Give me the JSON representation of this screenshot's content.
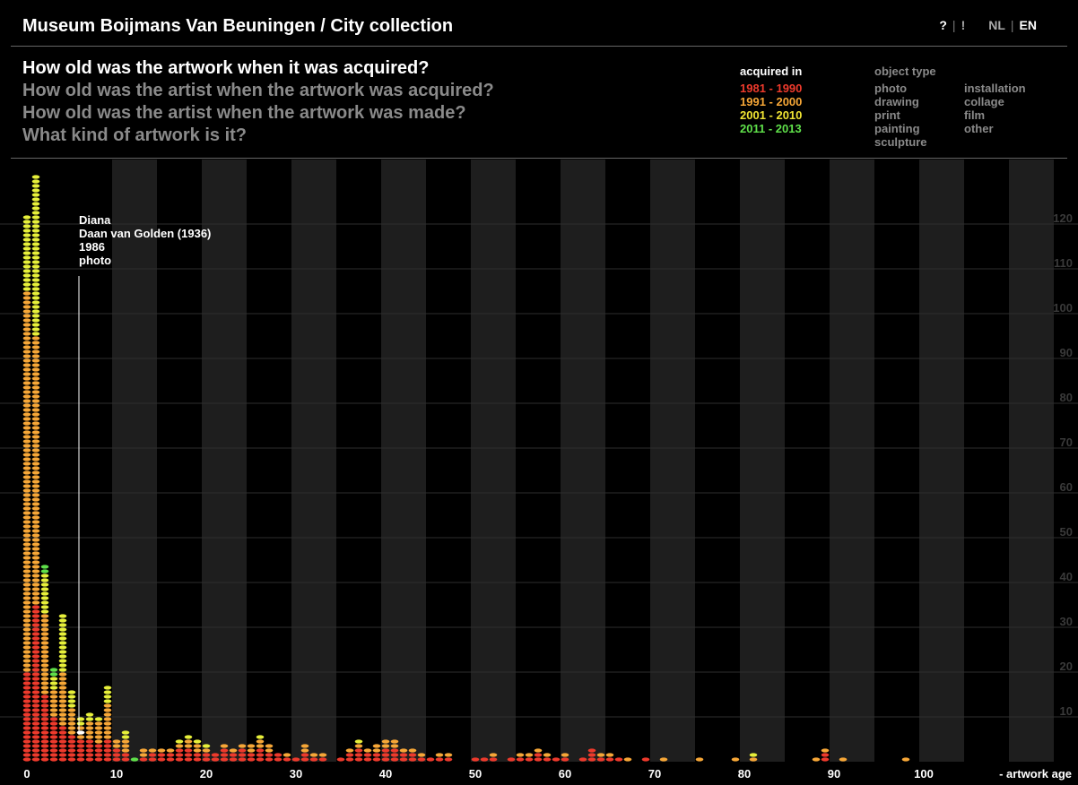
{
  "header": {
    "title": "Museum Boijmans Van Beuningen / City collection",
    "nav": {
      "help": "?",
      "sep1": "|",
      "info": "!",
      "lang_nl": "NL",
      "sep2": "|",
      "lang_en": "EN"
    }
  },
  "questions": [
    {
      "label": "How old was the artwork when it was acquired?",
      "active": true
    },
    {
      "label": "How old was the artist when the artwork was acquired?",
      "active": false
    },
    {
      "label": "How old was the artist when the artwork was made?",
      "active": false
    },
    {
      "label": "What kind of artwork is it?",
      "active": false
    }
  ],
  "legend": {
    "acquired_title": "acquired in",
    "periods": [
      {
        "label": "1981 - 1990",
        "color": "#ee3a2c"
      },
      {
        "label": "1991 - 2000",
        "color": "#f7a737"
      },
      {
        "label": "2001 - 2010",
        "color": "#f0e433"
      },
      {
        "label": "2011 - 2013",
        "color": "#5fe04a"
      }
    ],
    "type_title": "object type",
    "types_col1": [
      "photo",
      "drawing",
      "print",
      "painting",
      "sculpture"
    ],
    "types_col2": [
      "installation",
      "collage",
      "film",
      "other"
    ]
  },
  "tooltip": {
    "title": "Diana",
    "artist": "Daan van Golden (1936)",
    "year": "1986",
    "type": "photo",
    "age": 6
  },
  "chart_data": {
    "type": "scatter",
    "title": "",
    "xlabel": "- artwork age",
    "ylabel": "",
    "xlim": [
      0,
      116
    ],
    "ylim": [
      0,
      130
    ],
    "x_ticks": [
      0,
      10,
      20,
      30,
      40,
      50,
      60,
      70,
      80,
      90,
      100
    ],
    "y_ticks": [
      10,
      20,
      30,
      40,
      50,
      60,
      70,
      80,
      90,
      100,
      110,
      120
    ],
    "counts_by_age": [
      {
        "age": 0,
        "r": 20,
        "o": 85,
        "y": 17,
        "g": 0
      },
      {
        "age": 1,
        "r": 35,
        "o": 60,
        "y": 36,
        "g": 0
      },
      {
        "age": 2,
        "r": 15,
        "o": 18,
        "y": 9,
        "g": 2
      },
      {
        "age": 3,
        "r": 10,
        "o": 6,
        "y": 3,
        "g": 2
      },
      {
        "age": 4,
        "r": 8,
        "o": 12,
        "y": 13,
        "g": 0
      },
      {
        "age": 5,
        "r": 6,
        "o": 6,
        "y": 4,
        "g": 0
      },
      {
        "age": 6,
        "r": 5,
        "o": 3,
        "y": 2,
        "g": 0
      },
      {
        "age": 7,
        "r": 5,
        "o": 4,
        "y": 2,
        "g": 0
      },
      {
        "age": 8,
        "r": 4,
        "o": 5,
        "y": 1,
        "g": 0
      },
      {
        "age": 9,
        "r": 5,
        "o": 8,
        "y": 4,
        "g": 0
      },
      {
        "age": 10,
        "r": 3,
        "o": 2,
        "y": 0,
        "g": 0
      },
      {
        "age": 11,
        "r": 2,
        "o": 3,
        "y": 2,
        "g": 0
      },
      {
        "age": 12,
        "r": 0,
        "o": 0,
        "y": 0,
        "g": 1
      },
      {
        "age": 13,
        "r": 1,
        "o": 2,
        "y": 0,
        "g": 0
      },
      {
        "age": 14,
        "r": 2,
        "o": 1,
        "y": 0,
        "g": 0
      },
      {
        "age": 15,
        "r": 2,
        "o": 1,
        "y": 0,
        "g": 0
      },
      {
        "age": 16,
        "r": 2,
        "o": 1,
        "y": 0,
        "g": 0
      },
      {
        "age": 17,
        "r": 3,
        "o": 1,
        "y": 1,
        "g": 0
      },
      {
        "age": 18,
        "r": 3,
        "o": 2,
        "y": 1,
        "g": 0
      },
      {
        "age": 19,
        "r": 2,
        "o": 2,
        "y": 1,
        "g": 0
      },
      {
        "age": 20,
        "r": 2,
        "o": 1,
        "y": 1,
        "g": 0
      },
      {
        "age": 21,
        "r": 2,
        "o": 0,
        "y": 0,
        "g": 0
      },
      {
        "age": 22,
        "r": 3,
        "o": 1,
        "y": 0,
        "g": 0
      },
      {
        "age": 23,
        "r": 2,
        "o": 1,
        "y": 0,
        "g": 0
      },
      {
        "age": 24,
        "r": 3,
        "o": 1,
        "y": 0,
        "g": 0
      },
      {
        "age": 25,
        "r": 2,
        "o": 2,
        "y": 0,
        "g": 0
      },
      {
        "age": 26,
        "r": 3,
        "o": 2,
        "y": 1,
        "g": 0
      },
      {
        "age": 27,
        "r": 2,
        "o": 2,
        "y": 0,
        "g": 0
      },
      {
        "age": 28,
        "r": 2,
        "o": 0,
        "y": 0,
        "g": 0
      },
      {
        "age": 29,
        "r": 1,
        "o": 1,
        "y": 0,
        "g": 0
      },
      {
        "age": 30,
        "r": 1,
        "o": 0,
        "y": 0,
        "g": 0
      },
      {
        "age": 31,
        "r": 2,
        "o": 2,
        "y": 0,
        "g": 0
      },
      {
        "age": 32,
        "r": 1,
        "o": 1,
        "y": 0,
        "g": 0
      },
      {
        "age": 33,
        "r": 1,
        "o": 1,
        "y": 0,
        "g": 0
      },
      {
        "age": 35,
        "r": 1,
        "o": 0,
        "y": 0,
        "g": 0
      },
      {
        "age": 36,
        "r": 2,
        "o": 1,
        "y": 0,
        "g": 0
      },
      {
        "age": 37,
        "r": 3,
        "o": 1,
        "y": 1,
        "g": 0
      },
      {
        "age": 38,
        "r": 2,
        "o": 1,
        "y": 0,
        "g": 0
      },
      {
        "age": 39,
        "r": 2,
        "o": 2,
        "y": 0,
        "g": 0
      },
      {
        "age": 40,
        "r": 3,
        "o": 2,
        "y": 0,
        "g": 0
      },
      {
        "age": 41,
        "r": 3,
        "o": 2,
        "y": 0,
        "g": 0
      },
      {
        "age": 42,
        "r": 2,
        "o": 1,
        "y": 0,
        "g": 0
      },
      {
        "age": 43,
        "r": 2,
        "o": 1,
        "y": 0,
        "g": 0
      },
      {
        "age": 44,
        "r": 1,
        "o": 1,
        "y": 0,
        "g": 0
      },
      {
        "age": 45,
        "r": 1,
        "o": 0,
        "y": 0,
        "g": 0
      },
      {
        "age": 46,
        "r": 1,
        "o": 1,
        "y": 0,
        "g": 0
      },
      {
        "age": 47,
        "r": 1,
        "o": 1,
        "y": 0,
        "g": 0
      },
      {
        "age": 50,
        "r": 1,
        "o": 0,
        "y": 0,
        "g": 0
      },
      {
        "age": 51,
        "r": 1,
        "o": 0,
        "y": 0,
        "g": 0
      },
      {
        "age": 52,
        "r": 1,
        "o": 1,
        "y": 0,
        "g": 0
      },
      {
        "age": 54,
        "r": 1,
        "o": 0,
        "y": 0,
        "g": 0
      },
      {
        "age": 55,
        "r": 1,
        "o": 1,
        "y": 0,
        "g": 0
      },
      {
        "age": 56,
        "r": 1,
        "o": 1,
        "y": 0,
        "g": 0
      },
      {
        "age": 57,
        "r": 2,
        "o": 1,
        "y": 0,
        "g": 0
      },
      {
        "age": 58,
        "r": 1,
        "o": 1,
        "y": 0,
        "g": 0
      },
      {
        "age": 59,
        "r": 1,
        "o": 0,
        "y": 0,
        "g": 0
      },
      {
        "age": 60,
        "r": 1,
        "o": 1,
        "y": 0,
        "g": 0
      },
      {
        "age": 62,
        "r": 1,
        "o": 0,
        "y": 0,
        "g": 0
      },
      {
        "age": 63,
        "r": 3,
        "o": 0,
        "y": 0,
        "g": 0
      },
      {
        "age": 64,
        "r": 1,
        "o": 1,
        "y": 0,
        "g": 0
      },
      {
        "age": 65,
        "r": 1,
        "o": 1,
        "y": 0,
        "g": 0
      },
      {
        "age": 66,
        "r": 1,
        "o": 0,
        "y": 0,
        "g": 0
      },
      {
        "age": 67,
        "r": 0,
        "o": 1,
        "y": 0,
        "g": 0
      },
      {
        "age": 69,
        "r": 1,
        "o": 0,
        "y": 0,
        "g": 0
      },
      {
        "age": 71,
        "r": 0,
        "o": 1,
        "y": 0,
        "g": 0
      },
      {
        "age": 75,
        "r": 0,
        "o": 1,
        "y": 0,
        "g": 0
      },
      {
        "age": 79,
        "r": 0,
        "o": 1,
        "y": 0,
        "g": 0
      },
      {
        "age": 81,
        "r": 0,
        "o": 1,
        "y": 1,
        "g": 0
      },
      {
        "age": 88,
        "r": 0,
        "o": 1,
        "y": 0,
        "g": 0
      },
      {
        "age": 89,
        "r": 2,
        "o": 1,
        "y": 0,
        "g": 0
      },
      {
        "age": 91,
        "r": 0,
        "o": 1,
        "y": 0,
        "g": 0
      },
      {
        "age": 98,
        "r": 0,
        "o": 1,
        "y": 0,
        "g": 0
      }
    ]
  }
}
